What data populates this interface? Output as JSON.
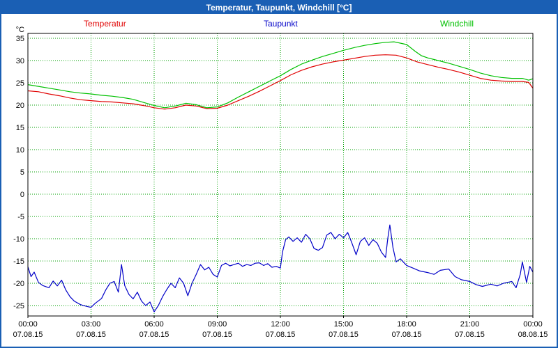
{
  "window": {
    "title": "Temperatur, Taupunkt, Windchill [°C]"
  },
  "colors": {
    "titlebar_bg": "#1a5fb4",
    "titlebar_text": "#ffffff",
    "border": "#1a5fb4",
    "plot_bg": "#ffffff",
    "frame": "#000000",
    "grid": "#00a000",
    "temperatur": "#e00000",
    "taupunkt": "#0000c8",
    "windchill": "#00c000"
  },
  "legend": [
    {
      "label": "Temperatur",
      "color": "#e00000"
    },
    {
      "label": "Taupunkt",
      "color": "#0000c8"
    },
    {
      "label": "Windchill",
      "color": "#00c000"
    }
  ],
  "chart_data": {
    "type": "line",
    "title": "Temperatur, Taupunkt, Windchill [°C]",
    "ylabel": "°C",
    "unit_label": "°C",
    "ylim": [
      -25,
      35
    ],
    "grid": true,
    "legend_position": "top",
    "y_ticks": [
      35,
      30,
      25,
      20,
      15,
      10,
      5,
      0,
      -5,
      -10,
      -15,
      -20,
      -25
    ],
    "x_ticks": [
      {
        "hour": 0,
        "time": "00:00",
        "date": "07.08.15"
      },
      {
        "hour": 3,
        "time": "03:00",
        "date": "07.08.15"
      },
      {
        "hour": 6,
        "time": "06:00",
        "date": "07.08.15"
      },
      {
        "hour": 9,
        "time": "09:00",
        "date": "07.08.15"
      },
      {
        "hour": 12,
        "time": "12:00",
        "date": "07.08.15"
      },
      {
        "hour": 15,
        "time": "15:00",
        "date": "07.08.15"
      },
      {
        "hour": 18,
        "time": "18:00",
        "date": "07.08.15"
      },
      {
        "hour": 21,
        "time": "21:00",
        "date": "07.08.15"
      },
      {
        "hour": 24,
        "time": "00:00",
        "date": "08.08.15"
      }
    ],
    "series": [
      {
        "name": "Temperatur",
        "color": "#e00000",
        "points": [
          [
            0,
            23.2
          ],
          [
            0.5,
            23.0
          ],
          [
            1,
            22.5
          ],
          [
            1.5,
            22.1
          ],
          [
            2,
            21.6
          ],
          [
            2.5,
            21.2
          ],
          [
            3,
            21.0
          ],
          [
            3.5,
            20.8
          ],
          [
            4,
            20.7
          ],
          [
            4.5,
            20.5
          ],
          [
            5,
            20.3
          ],
          [
            5.5,
            19.9
          ],
          [
            6,
            19.4
          ],
          [
            6.5,
            19.1
          ],
          [
            7,
            19.4
          ],
          [
            7.5,
            20.0
          ],
          [
            8,
            19.8
          ],
          [
            8.5,
            19.2
          ],
          [
            9,
            19.3
          ],
          [
            9.5,
            20.0
          ],
          [
            10,
            21.0
          ],
          [
            10.5,
            22.0
          ],
          [
            11,
            23.1
          ],
          [
            11.5,
            24.3
          ],
          [
            12,
            25.5
          ],
          [
            12.5,
            26.8
          ],
          [
            13,
            27.8
          ],
          [
            13.5,
            28.6
          ],
          [
            14,
            29.2
          ],
          [
            14.5,
            29.7
          ],
          [
            15,
            30.1
          ],
          [
            15.5,
            30.5
          ],
          [
            16,
            30.9
          ],
          [
            16.5,
            31.2
          ],
          [
            17,
            31.3
          ],
          [
            17.5,
            31.2
          ],
          [
            18,
            30.6
          ],
          [
            18.5,
            29.7
          ],
          [
            19,
            29.1
          ],
          [
            19.5,
            28.5
          ],
          [
            20,
            28.0
          ],
          [
            20.5,
            27.4
          ],
          [
            21,
            26.7
          ],
          [
            21.5,
            26.0
          ],
          [
            22,
            25.6
          ],
          [
            22.5,
            25.4
          ],
          [
            23,
            25.3
          ],
          [
            23.5,
            25.3
          ],
          [
            23.8,
            25.1
          ],
          [
            24,
            23.8
          ]
        ]
      },
      {
        "name": "Taupunkt",
        "color": "#0000c8",
        "points": [
          [
            0,
            -16.3
          ],
          [
            0.15,
            -18.5
          ],
          [
            0.3,
            -17.5
          ],
          [
            0.5,
            -19.8
          ],
          [
            0.7,
            -20.5
          ],
          [
            1,
            -21.0
          ],
          [
            1.2,
            -19.5
          ],
          [
            1.4,
            -20.6
          ],
          [
            1.6,
            -19.3
          ],
          [
            1.8,
            -21.5
          ],
          [
            2,
            -23.0
          ],
          [
            2.2,
            -24.0
          ],
          [
            2.5,
            -24.8
          ],
          [
            2.8,
            -25.2
          ],
          [
            3,
            -25.4
          ],
          [
            3.2,
            -24.5
          ],
          [
            3.5,
            -23.4
          ],
          [
            3.7,
            -21.5
          ],
          [
            3.9,
            -20.0
          ],
          [
            4.1,
            -19.6
          ],
          [
            4.3,
            -22.0
          ],
          [
            4.45,
            -15.8
          ],
          [
            4.6,
            -20.5
          ],
          [
            4.8,
            -22.5
          ],
          [
            5,
            -23.5
          ],
          [
            5.2,
            -22.0
          ],
          [
            5.4,
            -24.0
          ],
          [
            5.6,
            -25.0
          ],
          [
            5.8,
            -24.2
          ],
          [
            6,
            -26.4
          ],
          [
            6.2,
            -25.0
          ],
          [
            6.4,
            -23.0
          ],
          [
            6.6,
            -21.4
          ],
          [
            6.8,
            -20.0
          ],
          [
            7,
            -21.0
          ],
          [
            7.2,
            -18.8
          ],
          [
            7.4,
            -20.0
          ],
          [
            7.6,
            -22.8
          ],
          [
            7.8,
            -20.0
          ],
          [
            8,
            -18.0
          ],
          [
            8.2,
            -15.8
          ],
          [
            8.4,
            -17.0
          ],
          [
            8.6,
            -16.4
          ],
          [
            8.8,
            -18.0
          ],
          [
            9,
            -18.6
          ],
          [
            9.2,
            -16.0
          ],
          [
            9.4,
            -15.5
          ],
          [
            9.6,
            -16.1
          ],
          [
            9.8,
            -15.8
          ],
          [
            10,
            -15.5
          ],
          [
            10.2,
            -16.2
          ],
          [
            10.4,
            -15.8
          ],
          [
            10.6,
            -16.0
          ],
          [
            10.8,
            -15.5
          ],
          [
            11,
            -15.4
          ],
          [
            11.2,
            -16.0
          ],
          [
            11.4,
            -15.6
          ],
          [
            11.6,
            -16.4
          ],
          [
            11.8,
            -16.2
          ],
          [
            12,
            -16.6
          ],
          [
            12.1,
            -13.0
          ],
          [
            12.25,
            -10.2
          ],
          [
            12.4,
            -9.6
          ],
          [
            12.6,
            -10.6
          ],
          [
            12.8,
            -9.8
          ],
          [
            13,
            -10.8
          ],
          [
            13.2,
            -9.0
          ],
          [
            13.4,
            -10.0
          ],
          [
            13.6,
            -12.2
          ],
          [
            13.8,
            -12.6
          ],
          [
            14,
            -12.0
          ],
          [
            14.2,
            -9.2
          ],
          [
            14.4,
            -8.6
          ],
          [
            14.6,
            -10.0
          ],
          [
            14.8,
            -9.0
          ],
          [
            15,
            -9.8
          ],
          [
            15.2,
            -8.6
          ],
          [
            15.4,
            -11.0
          ],
          [
            15.6,
            -13.6
          ],
          [
            15.8,
            -10.6
          ],
          [
            16,
            -9.8
          ],
          [
            16.2,
            -11.5
          ],
          [
            16.4,
            -10.2
          ],
          [
            16.6,
            -11.0
          ],
          [
            16.8,
            -13.0
          ],
          [
            17,
            -14.2
          ],
          [
            17.1,
            -10.0
          ],
          [
            17.2,
            -6.9
          ],
          [
            17.35,
            -12.0
          ],
          [
            17.5,
            -15.2
          ],
          [
            17.7,
            -14.5
          ],
          [
            18,
            -16.0
          ],
          [
            18.3,
            -16.6
          ],
          [
            18.6,
            -17.2
          ],
          [
            19,
            -17.6
          ],
          [
            19.3,
            -18.0
          ],
          [
            19.6,
            -17.1
          ],
          [
            20,
            -16.8
          ],
          [
            20.3,
            -18.5
          ],
          [
            20.6,
            -19.2
          ],
          [
            21,
            -19.6
          ],
          [
            21.3,
            -20.3
          ],
          [
            21.6,
            -20.7
          ],
          [
            22,
            -20.2
          ],
          [
            22.3,
            -20.6
          ],
          [
            22.6,
            -20.0
          ],
          [
            23,
            -19.6
          ],
          [
            23.2,
            -21.0
          ],
          [
            23.4,
            -18.0
          ],
          [
            23.5,
            -15.2
          ],
          [
            23.7,
            -19.8
          ],
          [
            23.85,
            -16.2
          ],
          [
            24,
            -17.5
          ]
        ]
      },
      {
        "name": "Windchill",
        "color": "#00c000",
        "points": [
          [
            0,
            24.6
          ],
          [
            0.5,
            24.2
          ],
          [
            1,
            23.8
          ],
          [
            1.5,
            23.4
          ],
          [
            2,
            23.0
          ],
          [
            2.5,
            22.7
          ],
          [
            3,
            22.5
          ],
          [
            3.5,
            22.2
          ],
          [
            4,
            22.0
          ],
          [
            4.5,
            21.7
          ],
          [
            5,
            21.3
          ],
          [
            5.5,
            20.6
          ],
          [
            6,
            19.9
          ],
          [
            6.5,
            19.4
          ],
          [
            7,
            19.8
          ],
          [
            7.5,
            20.4
          ],
          [
            8,
            20.1
          ],
          [
            8.5,
            19.4
          ],
          [
            9,
            19.6
          ],
          [
            9.5,
            20.5
          ],
          [
            10,
            21.8
          ],
          [
            10.5,
            23.0
          ],
          [
            11,
            24.2
          ],
          [
            11.5,
            25.4
          ],
          [
            12,
            26.6
          ],
          [
            12.5,
            28.0
          ],
          [
            13,
            29.2
          ],
          [
            13.5,
            30.1
          ],
          [
            14,
            30.9
          ],
          [
            14.5,
            31.6
          ],
          [
            15,
            32.3
          ],
          [
            15.5,
            32.9
          ],
          [
            16,
            33.4
          ],
          [
            16.5,
            33.8
          ],
          [
            17,
            34.1
          ],
          [
            17.4,
            34.2
          ],
          [
            17.7,
            33.9
          ],
          [
            18,
            33.6
          ],
          [
            18.4,
            32.1
          ],
          [
            18.7,
            31.1
          ],
          [
            19,
            30.6
          ],
          [
            19.5,
            30.0
          ],
          [
            20,
            29.4
          ],
          [
            20.5,
            28.7
          ],
          [
            21,
            28.0
          ],
          [
            21.5,
            27.2
          ],
          [
            22,
            26.6
          ],
          [
            22.5,
            26.2
          ],
          [
            23,
            26.0
          ],
          [
            23.5,
            26.0
          ],
          [
            23.8,
            25.6
          ],
          [
            24,
            25.9
          ]
        ]
      }
    ]
  }
}
